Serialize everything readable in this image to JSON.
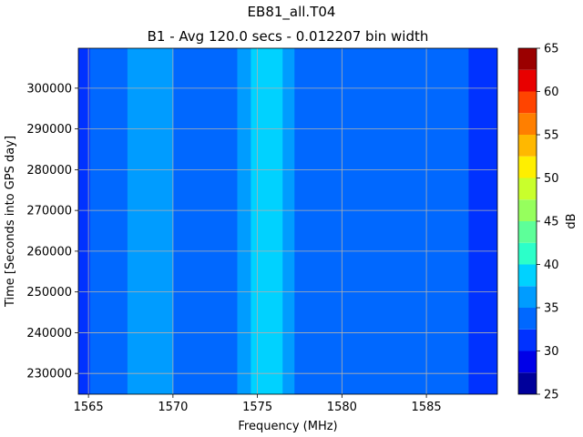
{
  "chart_data": {
    "type": "heatmap",
    "title": "EB81_all.T04",
    "subtitle": "B1 - Avg 120.0 secs - 0.012207 bin width",
    "xlabel": "Frequency (MHz)",
    "ylabel": "Time [Seconds into GPS day]",
    "xlim": [
      1564.4,
      1589.2
    ],
    "ylim": [
      224900,
      309800
    ],
    "x_ticks": [
      1565,
      1570,
      1575,
      1580,
      1585
    ],
    "y_ticks": [
      230000,
      240000,
      250000,
      260000,
      270000,
      280000,
      290000,
      300000
    ],
    "grid": true,
    "colorbar": {
      "label": "dB",
      "min": 25,
      "max": 65,
      "ticks": [
        25,
        30,
        35,
        40,
        45,
        50,
        55,
        60,
        65
      ],
      "levels": [
        25,
        27.5,
        30,
        32.5,
        35,
        37.5,
        40,
        42.5,
        45,
        47.5,
        50,
        52.5,
        55,
        57.5,
        60,
        62.5,
        65
      ],
      "colors": [
        "#00009b",
        "#0000e8",
        "#0032ff",
        "#0068ff",
        "#009cff",
        "#00d2ff",
        "#2cffc9",
        "#5dff99",
        "#96ff5d",
        "#c9ff2c",
        "#ffef00",
        "#ffb800",
        "#ff7f00",
        "#ff4400",
        "#e80000",
        "#9b0000"
      ]
    },
    "power_profile_db": [
      {
        "from": 1564.4,
        "to": 1565.1,
        "value": 31
      },
      {
        "from": 1565.1,
        "to": 1567.3,
        "value": 33.5
      },
      {
        "from": 1567.3,
        "to": 1570.0,
        "value": 36
      },
      {
        "from": 1570.0,
        "to": 1573.8,
        "value": 33.5
      },
      {
        "from": 1573.8,
        "to": 1574.6,
        "value": 36
      },
      {
        "from": 1574.6,
        "to": 1576.5,
        "value": 39
      },
      {
        "from": 1576.5,
        "to": 1577.2,
        "value": 36
      },
      {
        "from": 1577.2,
        "to": 1587.5,
        "value": 33.5
      },
      {
        "from": 1587.5,
        "to": 1589.2,
        "value": 31
      }
    ]
  }
}
